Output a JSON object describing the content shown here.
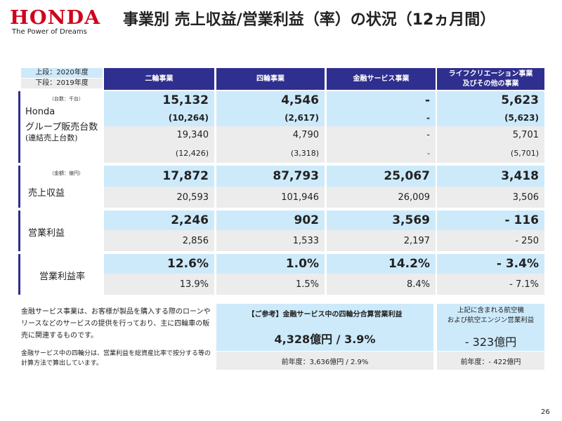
{
  "header": {
    "logo": "HONDA",
    "tagline": "The Power of Dreams",
    "title": "事業別 売上収益/営業利益（率）の状況（12ヵ月間）"
  },
  "legend": {
    "upper": "上段：2020年度",
    "lower": "下段：2019年度"
  },
  "columns": [
    "二輪事業",
    "四輪事業",
    "金融サービス事業",
    "ライフクリエーション事業\n及びその他の事業"
  ],
  "sections": [
    {
      "unit": "（台数：千台）",
      "label": [
        "Honda",
        "グループ販売台数",
        "(連結売上台数)"
      ],
      "rows": [
        [
          "15,132",
          "4,546",
          "-",
          "5,623"
        ],
        [
          "(10,264)",
          "(2,617)",
          "-",
          "(5,623)"
        ],
        [
          "19,340",
          "4,790",
          "-",
          "5,701"
        ],
        [
          "(12,426)",
          "(3,318)",
          "-",
          "(5,701)"
        ]
      ]
    },
    {
      "unit": "（金額：億円）",
      "label": [
        "売上収益"
      ],
      "rows": [
        [
          "17,872",
          "87,793",
          "25,067",
          "3,418"
        ],
        [
          "20,593",
          "101,946",
          "26,009",
          "3,506"
        ]
      ]
    },
    {
      "label": [
        "営業利益"
      ],
      "rows": [
        [
          "2,246",
          "902",
          "3,569",
          "- 116"
        ],
        [
          "2,856",
          "1,533",
          "2,197",
          "- 250"
        ]
      ]
    },
    {
      "label": [
        "営業利益率"
      ],
      "rows": [
        [
          "12.6%",
          "1.0%",
          "14.2%",
          "- 3.4%"
        ],
        [
          "13.9%",
          "1.5%",
          "8.4%",
          "- 7.1%"
        ]
      ]
    }
  ],
  "notes": {
    "n1": "金融サービス事業は、お客様が製品を購入する際のローンやリースなどのサービスの提供を行っており、主に四輪車の販売に関連するものです。",
    "n2": "金融サービス中の四輪分は、営業利益を総資産比率で按分する等の計算方法で算出しています。"
  },
  "ref": {
    "title": "【ご参考】金融サービス中の四輪分合算営業利益",
    "value": "4,328億円 / 3.9%",
    "prev": "前年度：3,636億円 / 2.9%"
  },
  "aero": {
    "title": "上記に含まれる航空機\nおよび航空エンジン営業利益",
    "value": "- 323億円",
    "prev": "前年度：- 422億円"
  },
  "page": "26",
  "colors": {
    "brand": "#d0021b",
    "header": "#2f2f8f",
    "current": "#cdeafb",
    "previous": "#ececec"
  }
}
